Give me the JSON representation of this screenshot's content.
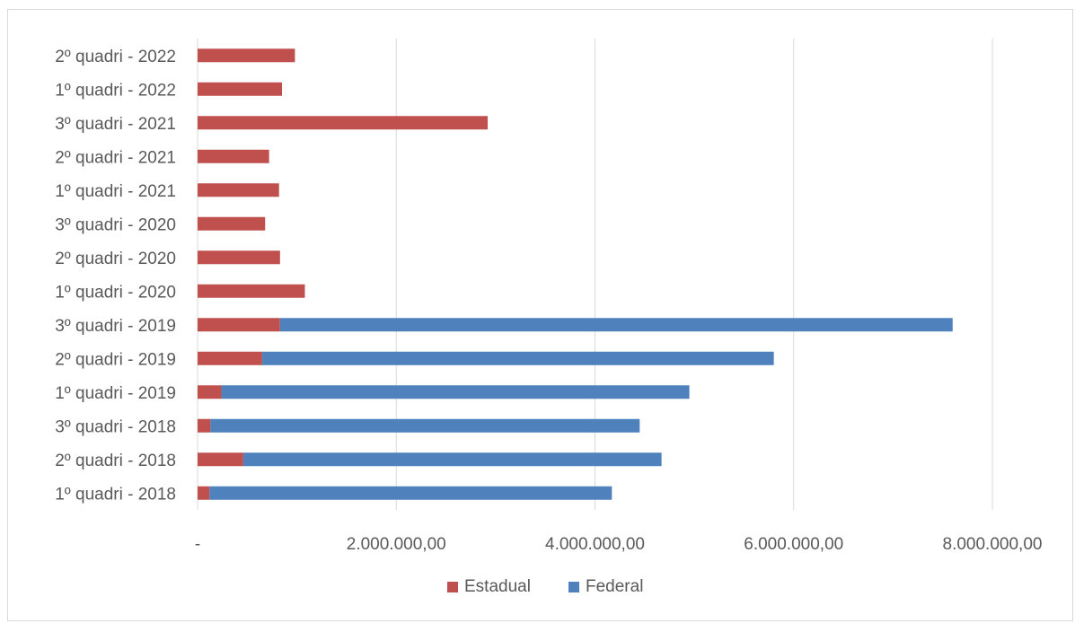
{
  "chart_data": {
    "type": "bar",
    "orientation": "horizontal",
    "stacked": true,
    "categories": [
      "1º quadri - 2018",
      "2º quadri - 2018",
      "3º quadri - 2018",
      "1º quadri - 2019",
      "2º quadri - 2019",
      "3º quadri - 2019",
      "1º quadri - 2020",
      "2º quadri - 2020",
      "3º quadri - 2020",
      "1º quadri - 2021",
      "2º quadri - 2021",
      "3º quadri - 2021",
      "1º quadri - 2022",
      "2º quadri - 2022"
    ],
    "series": [
      {
        "name": "Estadual",
        "color": "#c0504d",
        "values": [
          120000,
          460000,
          130000,
          240000,
          650000,
          830000,
          1080000,
          830000,
          680000,
          820000,
          720000,
          2920000,
          850000,
          980000
        ]
      },
      {
        "name": "Federal",
        "color": "#4f81bd",
        "values": [
          4050000,
          4210000,
          4320000,
          4710000,
          5150000,
          6770000,
          0,
          0,
          0,
          0,
          0,
          0,
          0,
          0
        ]
      }
    ],
    "xlim": [
      0,
      8000000
    ],
    "xticks": [
      0,
      2000000,
      4000000,
      6000000,
      8000000
    ],
    "xtick_labels": [
      "-",
      "2.000.000,00",
      "4.000.000,00",
      "6.000.000,00",
      "8.000.000,00"
    ],
    "grid": "vertical",
    "legend": {
      "position": "bottom",
      "entries": [
        "Estadual",
        "Federal"
      ]
    },
    "title": "",
    "xlabel": "",
    "ylabel": ""
  }
}
